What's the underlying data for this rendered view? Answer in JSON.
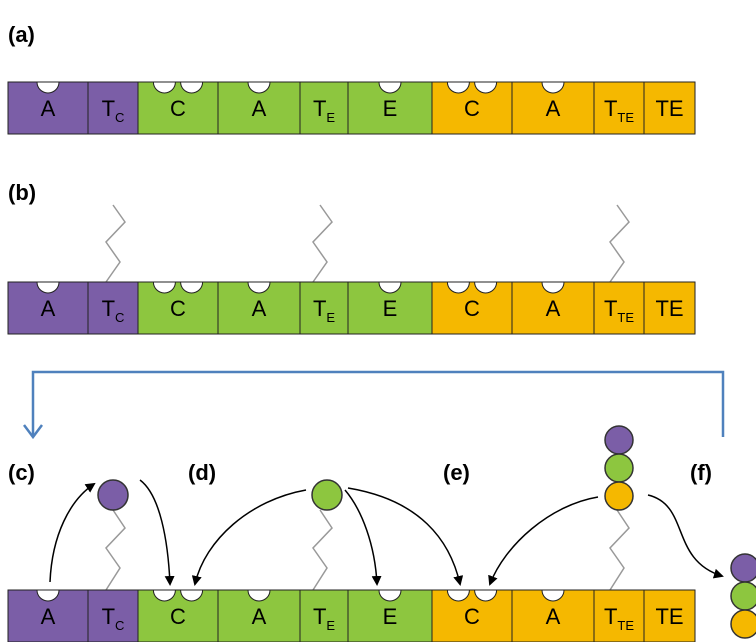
{
  "panels": [
    "(a)",
    "(b)",
    "(c)",
    "(d)",
    "(e)",
    "(f)"
  ],
  "rows": [
    {
      "domains": [
        {
          "label": "A"
        },
        {
          "label": "T",
          "sub": "C"
        },
        {
          "label": "C"
        },
        {
          "label": "A"
        },
        {
          "label": "T",
          "sub": "E"
        },
        {
          "label": "E"
        },
        {
          "label": "C"
        },
        {
          "label": "A"
        },
        {
          "label": "T",
          "sub": "TE"
        },
        {
          "label": "TE"
        }
      ]
    },
    {
      "domains": [
        {
          "label": "A"
        },
        {
          "label": "T",
          "sub": "C"
        },
        {
          "label": "C"
        },
        {
          "label": "A"
        },
        {
          "label": "T",
          "sub": "E"
        },
        {
          "label": "E"
        },
        {
          "label": "C"
        },
        {
          "label": "A"
        },
        {
          "label": "T",
          "sub": "TE"
        },
        {
          "label": "TE"
        }
      ]
    },
    {
      "domains": [
        {
          "label": "A"
        },
        {
          "label": "T",
          "sub": "C"
        },
        {
          "label": "C"
        },
        {
          "label": "A"
        },
        {
          "label": "T",
          "sub": "E"
        },
        {
          "label": "E"
        },
        {
          "label": "C"
        },
        {
          "label": "A"
        },
        {
          "label": "T",
          "sub": "TE"
        },
        {
          "label": "TE"
        }
      ]
    }
  ]
}
